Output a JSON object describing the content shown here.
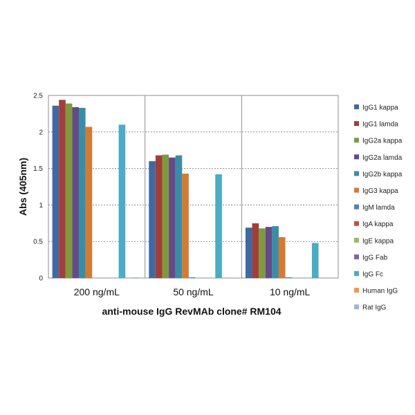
{
  "chart_data": {
    "type": "bar",
    "title": "",
    "xlabel": "anti-mouse  IgG RevMAb clone# RM104",
    "ylabel": "Abs (405nm)",
    "ylim": [
      0,
      2.5
    ],
    "yticks": [
      "0",
      "0.5",
      "1",
      "1.5",
      "2",
      "2.5"
    ],
    "grid": true,
    "legend_position": "right",
    "categories": [
      "200 ng/mL",
      "50 ng/mL",
      "10 ng/mL"
    ],
    "series": [
      {
        "name": "IgG1 kappa",
        "color": "#3e6aa3",
        "values": [
          2.36,
          1.6,
          0.69
        ]
      },
      {
        "name": "IgG1 lamda",
        "color": "#a33d3b",
        "values": [
          2.44,
          1.68,
          0.75
        ]
      },
      {
        "name": "IgG2a kappa",
        "color": "#7f9a3c",
        "values": [
          2.39,
          1.69,
          0.68
        ]
      },
      {
        "name": "IgG2a lamda",
        "color": "#664a87",
        "values": [
          2.34,
          1.65,
          0.7
        ]
      },
      {
        "name": "IgG2b kappa",
        "color": "#3a8da6",
        "values": [
          2.33,
          1.68,
          0.71
        ]
      },
      {
        "name": "IgG3 kappa",
        "color": "#d47a33",
        "values": [
          2.07,
          1.43,
          0.56
        ]
      },
      {
        "name": "IgM lamda",
        "color": "#4f81bd",
        "values": [
          0.0,
          0.01,
          0.01
        ]
      },
      {
        "name": "IgA kappa",
        "color": "#c0504d",
        "values": [
          0.0,
          0.0,
          0.0
        ]
      },
      {
        "name": "IgE kappa",
        "color": "#9bbb59",
        "values": [
          0.0,
          0.0,
          0.0
        ]
      },
      {
        "name": "IgG Fab",
        "color": "#8064a2",
        "values": [
          0.0,
          0.0,
          0.0
        ]
      },
      {
        "name": "IgG Fc",
        "color": "#4bacc6",
        "values": [
          2.1,
          1.42,
          0.48
        ]
      },
      {
        "name": "Human IgG",
        "color": "#f79646",
        "values": [
          0.0,
          0.0,
          0.0
        ]
      },
      {
        "name": "Rat IgG",
        "color": "#9bb6d8",
        "values": [
          0.01,
          0.0,
          0.0
        ]
      }
    ]
  }
}
